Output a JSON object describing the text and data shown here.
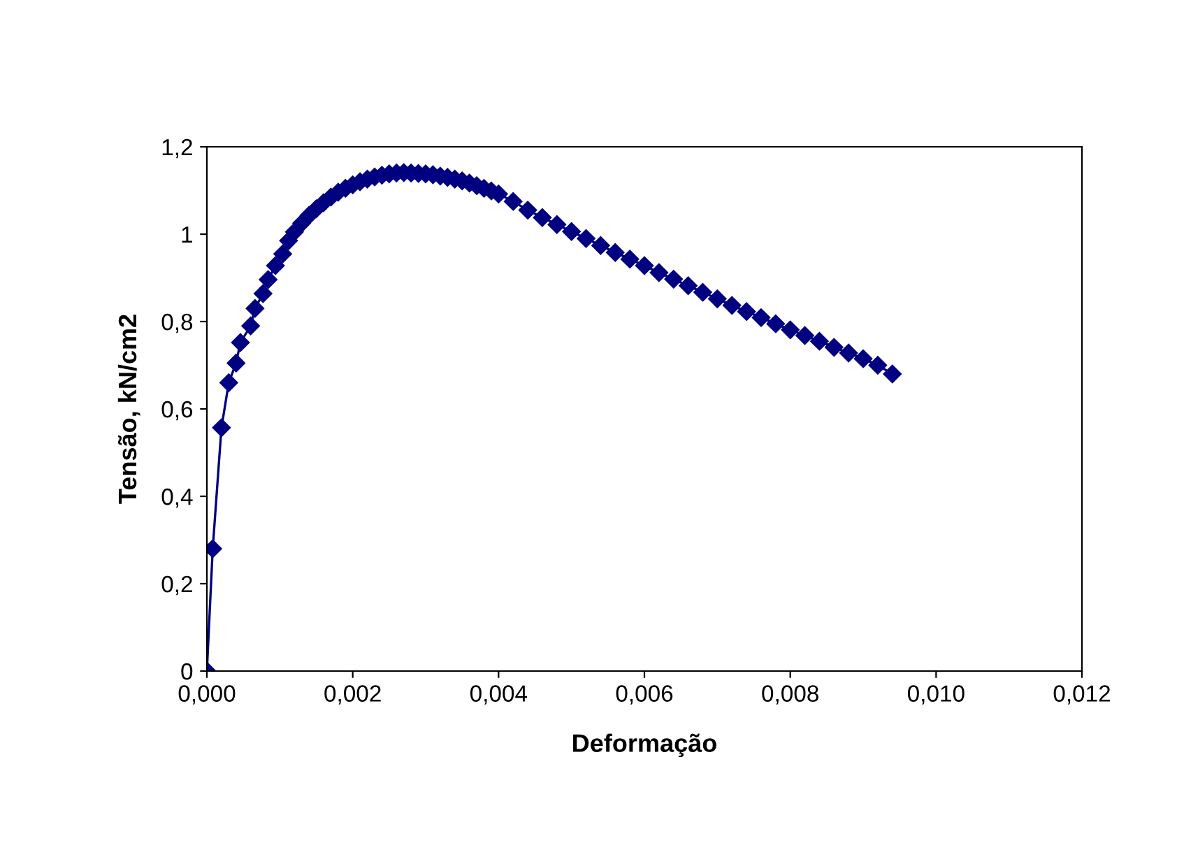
{
  "chart_data": {
    "type": "line",
    "xlabel": "Deformação",
    "ylabel": "Tensão, kN/cm2",
    "x": [
      0,
      8e-05,
      0.0002,
      0.0003,
      0.0004,
      0.00046,
      0.0006,
      0.00066,
      0.00077,
      0.00084,
      0.00094,
      0.00104,
      0.00112,
      0.0012,
      0.0013,
      0.0014,
      0.0015,
      0.0016,
      0.0017,
      0.0018,
      0.0019,
      0.002,
      0.0021,
      0.0022,
      0.0023,
      0.0024,
      0.0025,
      0.0026,
      0.0027,
      0.0028,
      0.0029,
      0.003,
      0.0031,
      0.0032,
      0.0033,
      0.0034,
      0.0035,
      0.0036,
      0.0037,
      0.0038,
      0.0039,
      0.004,
      0.0042,
      0.0044,
      0.0046,
      0.0048,
      0.005,
      0.0052,
      0.0054,
      0.0056,
      0.0058,
      0.006,
      0.0062,
      0.0064,
      0.0066,
      0.0068,
      0.007,
      0.0072,
      0.0074,
      0.0076,
      0.0078,
      0.008,
      0.0082,
      0.0084,
      0.0086,
      0.0088,
      0.009,
      0.0092,
      0.0094
    ],
    "series": [
      {
        "color": "#000080",
        "values": [
          0,
          0.28,
          0.557,
          0.66,
          0.705,
          0.752,
          0.79,
          0.83,
          0.864,
          0.896,
          0.928,
          0.955,
          0.985,
          1.005,
          1.025,
          1.043,
          1.058,
          1.072,
          1.085,
          1.096,
          1.105,
          1.113,
          1.12,
          1.126,
          1.131,
          1.135,
          1.138,
          1.14,
          1.141,
          1.14,
          1.139,
          1.138,
          1.136,
          1.133,
          1.13,
          1.126,
          1.122,
          1.117,
          1.111,
          1.105,
          1.099,
          1.092,
          1.075,
          1.055,
          1.038,
          1.022,
          1.006,
          0.99,
          0.974,
          0.958,
          0.943,
          0.928,
          0.912,
          0.897,
          0.882,
          0.867,
          0.852,
          0.837,
          0.823,
          0.809,
          0.795,
          0.781,
          0.768,
          0.755,
          0.741,
          0.728,
          0.715,
          0.7,
          0.68
        ]
      }
    ],
    "xlim": [
      0,
      0.012
    ],
    "xticks": [
      {
        "value": 0,
        "label": "0,000"
      },
      {
        "value": 0.002,
        "label": "0,002"
      },
      {
        "value": 0.004,
        "label": "0,004"
      },
      {
        "value": 0.006,
        "label": "0,006"
      },
      {
        "value": 0.008,
        "label": "0,008"
      },
      {
        "value": 0.01,
        "label": "0,010"
      },
      {
        "value": 0.012,
        "label": "0,012"
      }
    ],
    "ylim": [
      0,
      1.2
    ],
    "yticks": [
      0,
      {
        "value": 0.2,
        "label": "0,2"
      },
      {
        "value": 0.4,
        "label": "0,4"
      },
      {
        "value": 0.6,
        "label": "0,6"
      },
      {
        "value": 0.8,
        "label": "0,8"
      },
      1,
      {
        "value": 1.2,
        "label": "1,2"
      }
    ],
    "grid": false,
    "legend": false,
    "marker": "diamond",
    "line_style": "solid"
  }
}
